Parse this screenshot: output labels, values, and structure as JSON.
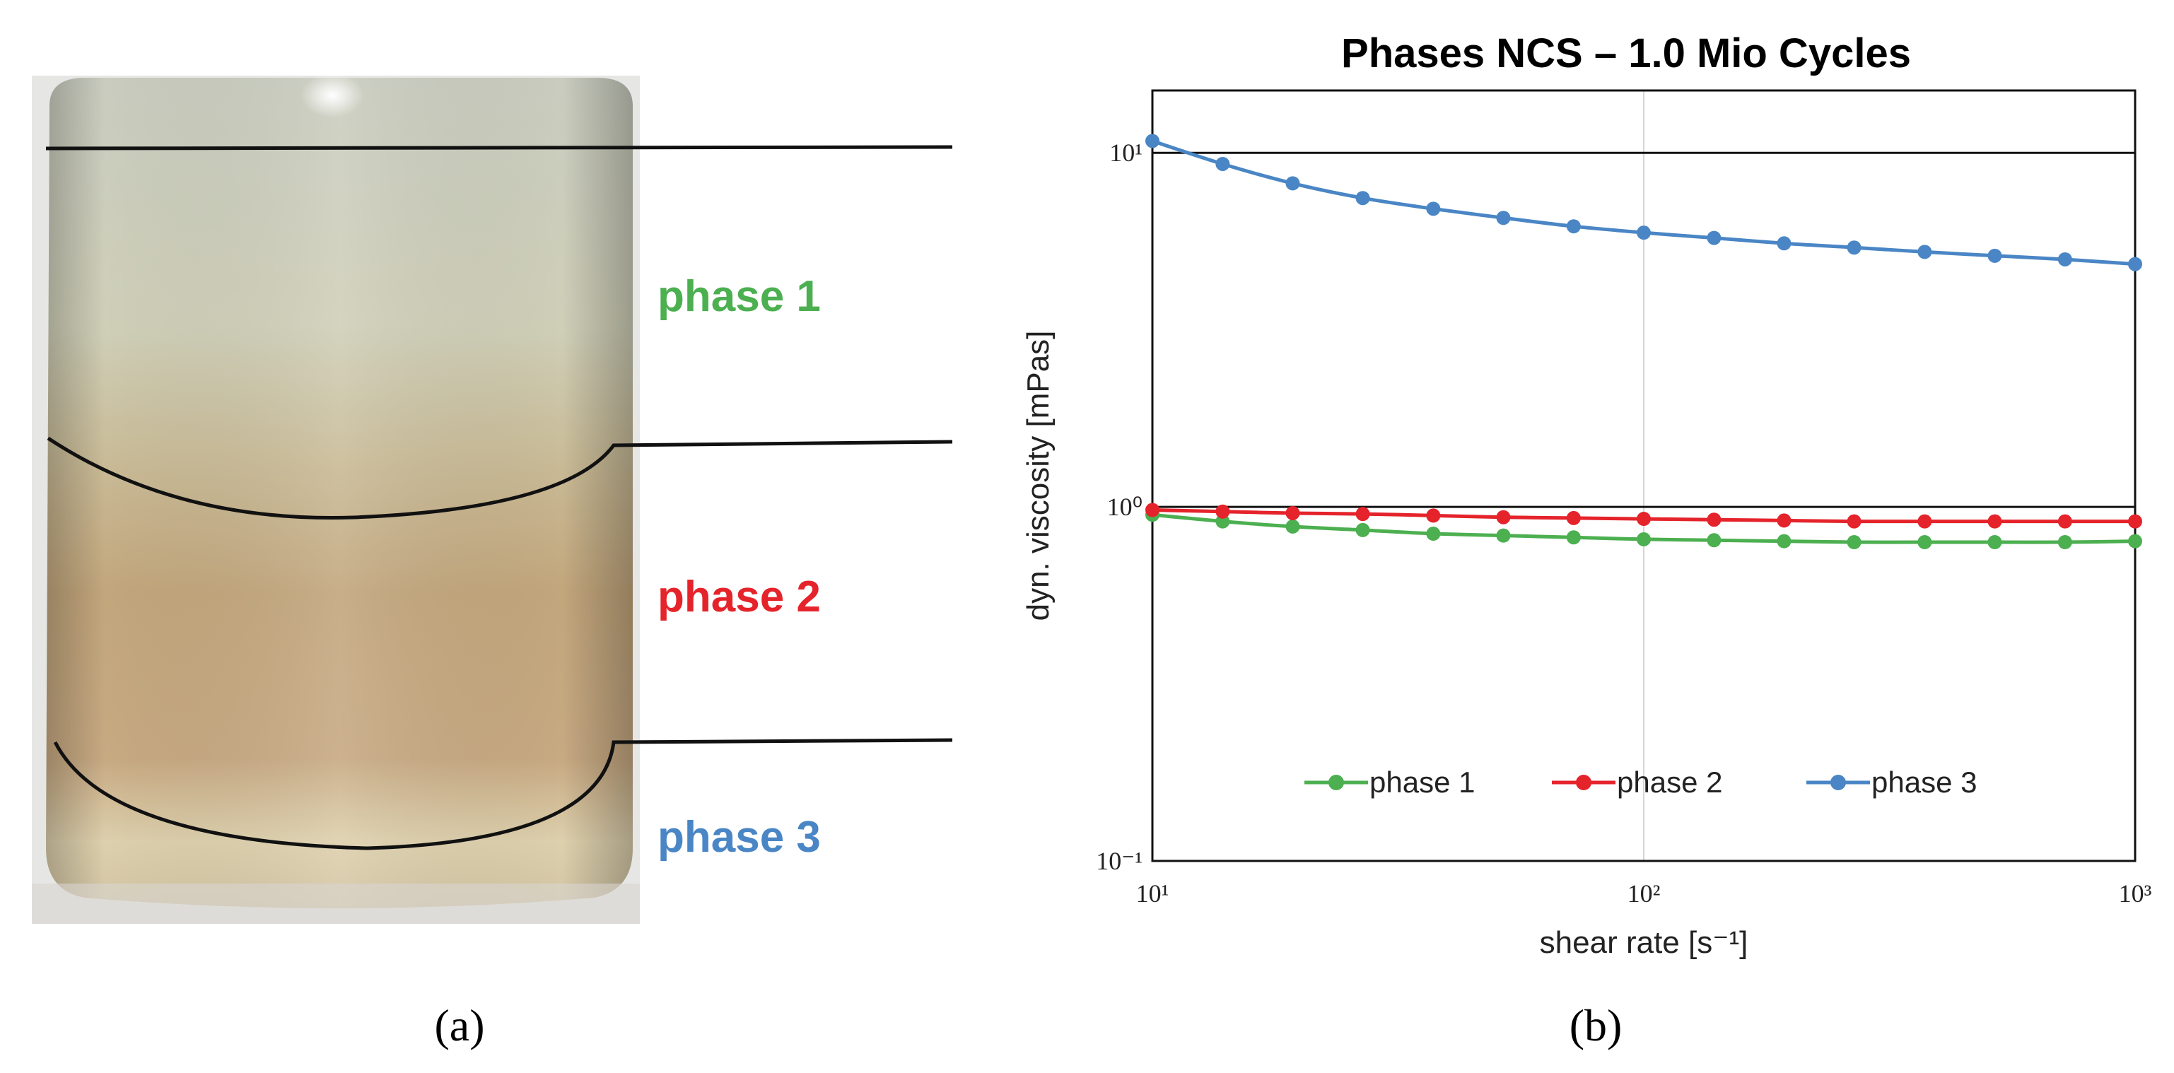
{
  "panels": {
    "a": {
      "caption": "(a)"
    },
    "b": {
      "caption": "(b)"
    }
  },
  "photo": {
    "phase_labels": [
      {
        "text": "phase 1",
        "color": "#4caf50"
      },
      {
        "text": "phase 2",
        "color": "#e5232b"
      },
      {
        "text": "phase 3",
        "color": "#4a86c5"
      }
    ]
  },
  "chart_data": {
    "type": "line",
    "title": "Phases NCS – 1.0 Mio Cycles",
    "xlabel": "shear rate [s⁻¹]",
    "ylabel": "dyn. viscosity [mPas]",
    "xscale": "log",
    "yscale": "log",
    "xlim": [
      10,
      1000
    ],
    "ylim": [
      0.1,
      15
    ],
    "x_ticks": [
      {
        "value": 10,
        "label": "10¹"
      },
      {
        "value": 100,
        "label": "10²"
      },
      {
        "value": 1000,
        "label": "10³"
      }
    ],
    "y_ticks": [
      {
        "value": 0.1,
        "label": "10⁻¹"
      },
      {
        "value": 1,
        "label": "10⁰"
      },
      {
        "value": 10,
        "label": "10¹"
      }
    ],
    "x": [
      10,
      13.9,
      19.3,
      26.8,
      37.3,
      51.8,
      72.0,
      100,
      139,
      193,
      268,
      373,
      518,
      720,
      1000
    ],
    "series": [
      {
        "name": "phase 1",
        "color": "#4caf50",
        "values": [
          0.95,
          0.91,
          0.88,
          0.86,
          0.84,
          0.83,
          0.82,
          0.81,
          0.805,
          0.8,
          0.795,
          0.795,
          0.795,
          0.795,
          0.8
        ]
      },
      {
        "name": "phase 2",
        "color": "#e5232b",
        "values": [
          0.98,
          0.97,
          0.96,
          0.955,
          0.945,
          0.935,
          0.93,
          0.925,
          0.92,
          0.915,
          0.91,
          0.91,
          0.91,
          0.91,
          0.91
        ]
      },
      {
        "name": "phase 3",
        "color": "#4a86c5",
        "values": [
          10.8,
          9.3,
          8.2,
          7.45,
          6.95,
          6.55,
          6.2,
          5.95,
          5.75,
          5.55,
          5.4,
          5.25,
          5.12,
          5.0,
          4.85
        ]
      }
    ],
    "legend_position": "bottom-center",
    "grid": "major x and y"
  }
}
